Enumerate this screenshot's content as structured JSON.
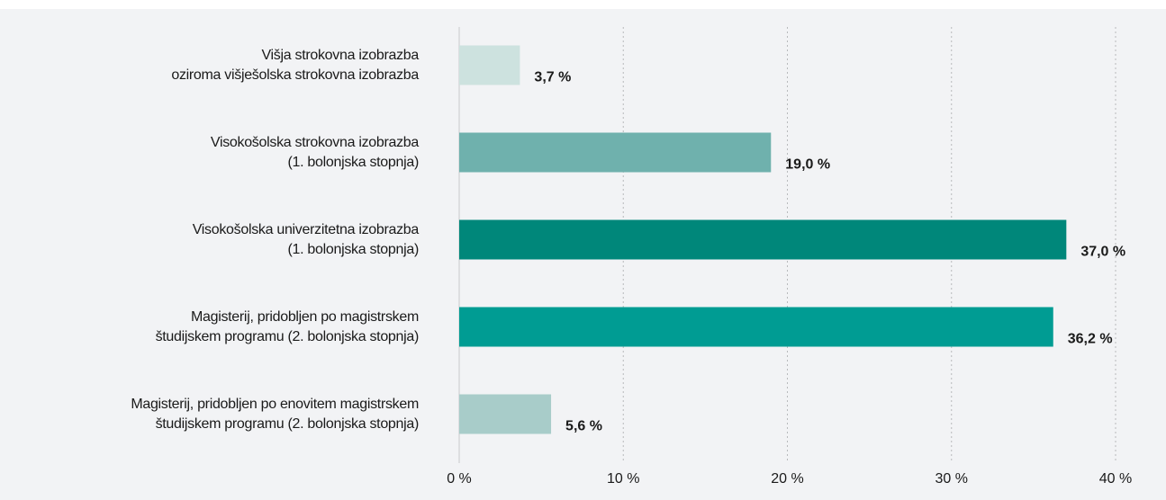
{
  "chart_data": {
    "type": "bar",
    "orientation": "horizontal",
    "categories": [
      "Višja strokovna izobrazba\noziroma višješolska strokovna izobrazba",
      "Visokošolska strokovna izobrazba\n(1. bolonjska stopnja)",
      "Visokošolska univerzitetna izobrazba\n(1. bolonjska stopnja)",
      "Magisterij, pridobljen po magistrskem\nštudijskem programu (2. bolonjska stopnja)",
      "Magisterij, pridobljen po enovitem magistrskem\nštudijskem programu (2. bolonjska stopnja)"
    ],
    "values": [
      3.7,
      19.0,
      37.0,
      36.2,
      5.6
    ],
    "value_labels": [
      "3,7 %",
      "19,0 %",
      "37,0 %",
      "36,2 %",
      "5,6 %"
    ],
    "colors": [
      "#cde2df",
      "#6fb1ad",
      "#00877a",
      "#009c93",
      "#a8ccc9"
    ],
    "xlim": [
      0,
      40
    ],
    "xticks": [
      {
        "value": 0,
        "label": "0 %"
      },
      {
        "value": 10,
        "label": "10 %"
      },
      {
        "value": 20,
        "label": "20 %"
      },
      {
        "value": 30,
        "label": "30 %"
      },
      {
        "value": 40,
        "label": "40 %"
      }
    ],
    "grid": true
  }
}
